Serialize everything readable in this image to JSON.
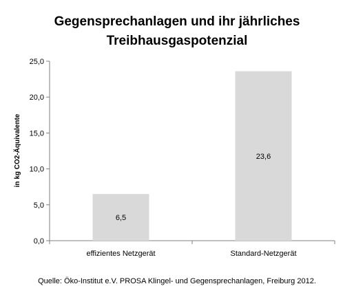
{
  "chart_data": {
    "type": "bar",
    "title_lines": [
      "Gegensprechanlagen und ihr jährliches",
      "Treibhausgaspotenzial"
    ],
    "ylabel": "in kg CO2-Äquivalente",
    "xlabel": "",
    "categories": [
      "effizientes Netzgerät",
      "Standard-Netzgerät"
    ],
    "values": [
      6.5,
      23.6
    ],
    "value_labels": [
      "6,5",
      "23,6"
    ],
    "ylim": [
      0,
      25
    ],
    "yticks": [
      0,
      5,
      10,
      15,
      20,
      25
    ],
    "ytick_labels": [
      "0,0",
      "5,0",
      "10,0",
      "15,0",
      "20,0",
      "25,0"
    ],
    "grid": false,
    "legend": "none",
    "bar_color": "#d9d9d9",
    "source": "Quelle: Öko-Institut e.V.  PROSA Klingel- und Gegensprechanlagen, Freiburg 2012."
  }
}
